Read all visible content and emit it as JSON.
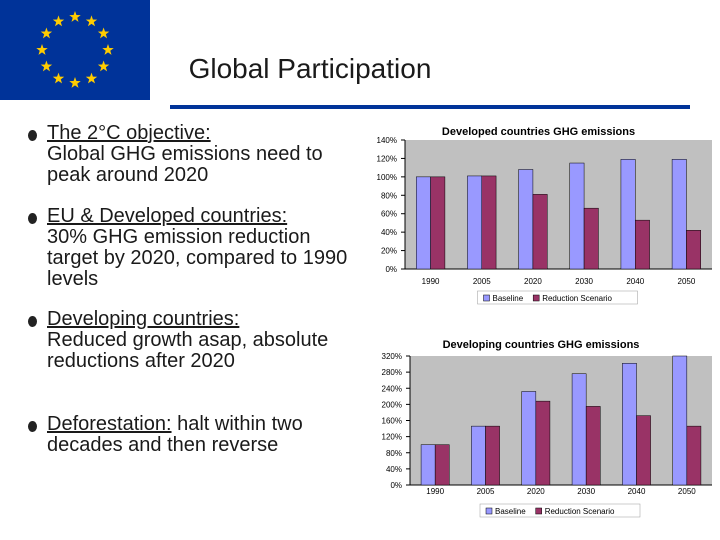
{
  "header": {
    "title": "Global Participation"
  },
  "bullets": [
    {
      "heading": "The 2°C objective:",
      "text": "Global GHG emissions need to peak around 2020"
    },
    {
      "heading": "EU & Developed countries:",
      "text": "30% GHG emission reduction target by 2020, compared to 1990 levels"
    },
    {
      "heading": "Developing countries:",
      "text": "Reduced growth asap, absolute reductions after 2020"
    },
    {
      "heading": "Deforestation:",
      "text": "halt within two decades and then reverse"
    }
  ],
  "chart_data": [
    {
      "type": "bar",
      "title": "Developed countries GHG emissions",
      "categories": [
        "1990",
        "2005",
        "2020",
        "2030",
        "2040",
        "2050"
      ],
      "series": [
        {
          "name": "Baseline",
          "color": "#9999ff",
          "values": [
            100,
            101,
            108,
            115,
            119,
            119
          ]
        },
        {
          "name": "Reduction Scenario",
          "color": "#993366",
          "values": [
            100,
            101,
            81,
            66,
            53,
            42
          ]
        }
      ],
      "ylim": [
        0,
        140
      ],
      "yticks": [
        {
          "value": 0,
          "label": "0%"
        },
        {
          "value": 20,
          "label": "20%"
        },
        {
          "value": 40,
          "label": "40%"
        },
        {
          "value": 60,
          "label": "60%"
        },
        {
          "value": 80,
          "label": "80%"
        },
        {
          "value": 100,
          "label": "100%"
        },
        {
          "value": 120,
          "label": "120%"
        },
        {
          "value": 140,
          "label": "140%"
        }
      ],
      "legend": "bottom"
    },
    {
      "type": "bar",
      "title": "Developing countries GHG emissions",
      "categories": [
        "1990",
        "2005",
        "2020",
        "2030",
        "2040",
        "2050"
      ],
      "series": [
        {
          "name": "Baseline",
          "color": "#9999ff",
          "values": [
            100,
            146,
            232,
            276,
            302,
            320
          ]
        },
        {
          "name": "Reduction Scenario",
          "color": "#993366",
          "values": [
            100,
            146,
            208,
            195,
            172,
            146
          ]
        }
      ],
      "ylim": [
        0,
        320
      ],
      "yticks": [
        {
          "value": 0,
          "label": "0%"
        },
        {
          "value": 40,
          "label": "40%"
        },
        {
          "value": 80,
          "label": "80%"
        },
        {
          "value": 120,
          "label": "120%"
        },
        {
          "value": 160,
          "label": "160%"
        },
        {
          "value": 200,
          "label": "200%"
        },
        {
          "value": 240,
          "label": "240%"
        },
        {
          "value": 280,
          "label": "280%"
        },
        {
          "value": 320,
          "label": "320%"
        }
      ],
      "legend": "bottom"
    }
  ]
}
